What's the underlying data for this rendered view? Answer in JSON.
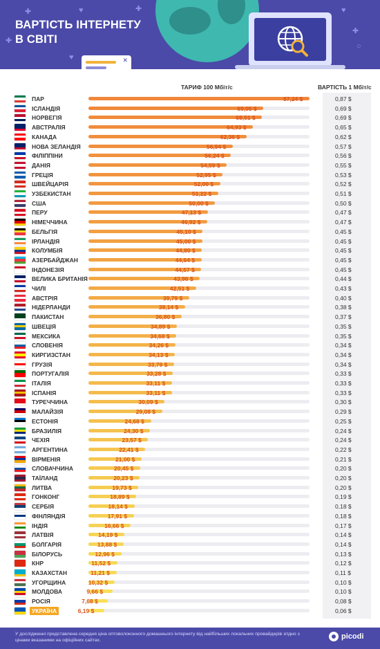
{
  "header": {
    "title_line1": "ВАРТІСТЬ ІНТЕРНЕТУ",
    "title_line2": "В СВІТІ"
  },
  "columns": {
    "tariff": "ТАРИФ 100 Мбіт/с",
    "cost": "ВАРТІСТЬ 1 Мбіт/с"
  },
  "footer": {
    "note": "У дослідженні представлена середня ціна оптоволоконного домашнього інтернету від найбільших локальних провайдерів згідно з цінами вказаними на офіційних сайтах.",
    "logo": "picodi"
  },
  "colors": {
    "header_bg": "#4b4aa8",
    "bar_top": "#f0873a",
    "bar_bottom": "#f7e25a",
    "value_text": "#d9541e",
    "highlight": "#f5a623"
  },
  "chart_data": {
    "type": "bar",
    "orientation": "horizontal",
    "xlim": [
      0,
      87.24
    ],
    "series": [
      {
        "name": "ТАРИФ 100 Мбіт/с",
        "values": [
          87.24,
          69.05,
          68.51,
          64.93,
          62.36,
          56.94,
          56.24,
          54.59,
          52.95,
          52.0,
          51.22,
          50.0,
          47.13,
          46.92,
          45.1,
          45.0,
          44.8,
          44.64,
          44.57,
          43.96,
          42.51,
          39.79,
          38.14,
          36.8,
          34.89,
          34.68,
          34.26,
          34.13,
          33.79,
          33.28,
          33.11,
          33.11,
          30.09,
          29.08,
          24.68,
          24.3,
          23.57,
          22.41,
          21.0,
          20.45,
          20.23,
          19.73,
          18.89,
          18.14,
          17.91,
          16.66,
          14.19,
          13.88,
          12.96,
          11.52,
          11.21,
          10.32,
          9.66,
          7.68,
          6.19
        ]
      },
      {
        "name": "ВАРТІСТЬ 1 Мбіт/с",
        "values": [
          0.87,
          0.69,
          0.69,
          0.65,
          0.62,
          0.57,
          0.56,
          0.55,
          0.53,
          0.52,
          0.51,
          0.5,
          0.47,
          0.47,
          0.45,
          0.45,
          0.45,
          0.45,
          0.45,
          0.44,
          0.43,
          0.4,
          0.38,
          0.37,
          0.35,
          0.35,
          0.34,
          0.34,
          0.34,
          0.33,
          0.33,
          0.33,
          0.3,
          0.29,
          0.25,
          0.24,
          0.24,
          0.22,
          0.21,
          0.2,
          0.2,
          0.2,
          0.19,
          0.18,
          0.18,
          0.17,
          0.14,
          0.14,
          0.13,
          0.12,
          0.11,
          0.1,
          0.1,
          0.08,
          0.06
        ]
      }
    ],
    "value_labels": [
      "87,24 $",
      "69,05 $",
      "68,51 $",
      "64,93 $",
      "62,36 $",
      "56,94 $",
      "56,24 $",
      "54,59 $",
      "52,95 $",
      "52,00 $",
      "51,22 $",
      "50,00 $",
      "47,13 $",
      "46,92 $",
      "45,10 $",
      "45,00 $",
      "44,80 $",
      "44,64 $",
      "44,57 $",
      "43,96 $",
      "42,51 $",
      "39,79 $",
      "38,14 $",
      "36,80 $",
      "34,89 $",
      "34,68 $",
      "34,26 $",
      "34,13 $",
      "33,79 $",
      "33,28 $",
      "33,11 $",
      "33,11 $",
      "30,09 $",
      "29,08 $",
      "24,68 $",
      "24,30 $",
      "23,57 $",
      "22,41 $",
      "21,00 $",
      "20,45 $",
      "20,23 $",
      "19,73 $",
      "18,89 $",
      "18,14 $",
      "17,91 $",
      "16,66 $",
      "14,19 $",
      "13,88 $",
      "12,96 $",
      "11,52 $",
      "11,21 $",
      "10,32 $",
      "9,66 $",
      "7,68 $",
      "6,19 $"
    ],
    "cost_labels": [
      "0,87 $",
      "0,69 $",
      "0,69 $",
      "0,65 $",
      "0,62 $",
      "0,57 $",
      "0,56 $",
      "0,55 $",
      "0,53 $",
      "0,52 $",
      "0,51 $",
      "0,50 $",
      "0,47 $",
      "0,47 $",
      "0,45 $",
      "0,45 $",
      "0,45 $",
      "0,45 $",
      "0,45 $",
      "0,44 $",
      "0,43 $",
      "0,40 $",
      "0,38 $",
      "0,37 $",
      "0,35 $",
      "0,35 $",
      "0,34 $",
      "0,34 $",
      "0,34 $",
      "0,33 $",
      "0,33 $",
      "0,33 $",
      "0,30 $",
      "0,29 $",
      "0,25 $",
      "0,24 $",
      "0,24 $",
      "0,22 $",
      "0,21 $",
      "0,20 $",
      "0,20 $",
      "0,20 $",
      "0,19 $",
      "0,18 $",
      "0,18 $",
      "0,17 $",
      "0,14 $",
      "0,14 $",
      "0,13 $",
      "0,12 $",
      "0,11 $",
      "0,10 $",
      "0,10 $",
      "0,08 $",
      "0,06 $"
    ],
    "categories": [
      "ПАР",
      "ІСЛАНДІЯ",
      "НОРВЕГІЯ",
      "АВСТРАЛІЯ",
      "КАНАДА",
      "НОВА ЗЕЛАНДІЯ",
      "ФІЛІППІНИ",
      "ДАНІЯ",
      "ГРЕЦІЯ",
      "ШВЕЙЦАРІЯ",
      "УЗБЕКИСТАН",
      "США",
      "ПЕРУ",
      "НІМЕЧЧИНА",
      "БЕЛЬГІЯ",
      "ІРЛАНДІЯ",
      "КОЛУМБІЯ",
      "АЗЕРБАЙДЖАН",
      "ІНДОНЕЗІЯ",
      "ВЕЛИКА БРИТАНІЯ",
      "ЧИЛІ",
      "АВСТРІЯ",
      "НІДЕРЛАНДИ",
      "ПАКИСТАН",
      "ШВЕЦІЯ",
      "МЕКСИКА",
      "СЛОВЕНІЯ",
      "КИРГИЗСТАН",
      "ГРУЗІЯ",
      "ПОРТУГАЛІЯ",
      "ІТАЛІЯ",
      "ІСПАНІЯ",
      "ТУРЕЧЧИНА",
      "МАЛАЙЗІЯ",
      "ЕСТОНІЯ",
      "БРАЗИЛІЯ",
      "ЧЕХІЯ",
      "АРГЕНТИНА",
      "ВІРМЕНІЯ",
      "СЛОВАЧЧИНА",
      "ТАЇЛАНД",
      "ЛИТВА",
      "ГОНКОНГ",
      "СЕРБІЯ",
      "ФІНЛЯНДІЯ",
      "ІНДІЯ",
      "ЛАТВІЯ",
      "БОЛГАРІЯ",
      "БІЛОРУСЬ",
      "КНР",
      "КАЗАХСТАН",
      "УГОРЩИНА",
      "МОЛДОВА",
      "РОСІЯ",
      "УКРАЇНА"
    ],
    "highlighted_category": "УКРАЇНА",
    "flags": [
      [
        "#007a4d",
        "#ffffff",
        "#de3831"
      ],
      [
        "#02529c",
        "#ffffff",
        "#dc1e35"
      ],
      [
        "#ba0c2f",
        "#ffffff",
        "#00205b"
      ],
      [
        "#012169",
        "#012169",
        "#e4002b"
      ],
      [
        "#ff0000",
        "#ffffff",
        "#ff0000"
      ],
      [
        "#012169",
        "#012169",
        "#c8102e"
      ],
      [
        "#0038a8",
        "#ffffff",
        "#ce1126"
      ],
      [
        "#c8102e",
        "#ffffff",
        "#c8102e"
      ],
      [
        "#0d5eaf",
        "#ffffff",
        "#0d5eaf"
      ],
      [
        "#d52b1e",
        "#ffffff",
        "#d52b1e"
      ],
      [
        "#1eb53a",
        "#ffffff",
        "#0099b5"
      ],
      [
        "#b22234",
        "#ffffff",
        "#3c3b6e"
      ],
      [
        "#d91023",
        "#ffffff",
        "#d91023"
      ],
      [
        "#000000",
        "#dd0000",
        "#ffce00"
      ],
      [
        "#000000",
        "#fdda24",
        "#ef3340"
      ],
      [
        "#169b62",
        "#ffffff",
        "#ff883e"
      ],
      [
        "#fcd116",
        "#003893",
        "#ce1126"
      ],
      [
        "#00b5e2",
        "#ef3340",
        "#509e2f"
      ],
      [
        "#ce1126",
        "#ffffff",
        "#ffffff"
      ],
      [
        "#012169",
        "#ffffff",
        "#c8102e"
      ],
      [
        "#0039a6",
        "#ffffff",
        "#d52b1e"
      ],
      [
        "#ed2939",
        "#ffffff",
        "#ed2939"
      ],
      [
        "#ae1c28",
        "#ffffff",
        "#21468b"
      ],
      [
        "#01411c",
        "#01411c",
        "#ffffff"
      ],
      [
        "#006aa7",
        "#fecc00",
        "#006aa7"
      ],
      [
        "#006847",
        "#ffffff",
        "#ce1126"
      ],
      [
        "#ffffff",
        "#005da4",
        "#ed1c24"
      ],
      [
        "#e8112d",
        "#ffef00",
        "#e8112d"
      ],
      [
        "#ffffff",
        "#ff0000",
        "#ffffff"
      ],
      [
        "#006600",
        "#ff0000",
        "#ff0000"
      ],
      [
        "#009246",
        "#ffffff",
        "#ce2b37"
      ],
      [
        "#aa151b",
        "#f1bf00",
        "#aa151b"
      ],
      [
        "#e30a17",
        "#e30a17",
        "#ffffff"
      ],
      [
        "#010066",
        "#cc0001",
        "#ffffff"
      ],
      [
        "#0072ce",
        "#000000",
        "#ffffff"
      ],
      [
        "#009c3b",
        "#ffdf00",
        "#002776"
      ],
      [
        "#11457e",
        "#ffffff",
        "#d7141a"
      ],
      [
        "#74acdf",
        "#ffffff",
        "#74acdf"
      ],
      [
        "#d90012",
        "#0033a0",
        "#f2a800"
      ],
      [
        "#ffffff",
        "#0b4ea2",
        "#ee1c25"
      ],
      [
        "#a51931",
        "#2d2a4a",
        "#a51931"
      ],
      [
        "#fdb913",
        "#006a44",
        "#c1272d"
      ],
      [
        "#de2910",
        "#ffffff",
        "#de2910"
      ],
      [
        "#c6363c",
        "#0c4076",
        "#ffffff"
      ],
      [
        "#ffffff",
        "#003580",
        "#ffffff"
      ],
      [
        "#ff9933",
        "#ffffff",
        "#138808"
      ],
      [
        "#9e3039",
        "#ffffff",
        "#9e3039"
      ],
      [
        "#ffffff",
        "#00966e",
        "#d62612"
      ],
      [
        "#c8313e",
        "#c8313e",
        "#4aa657"
      ],
      [
        "#de2910",
        "#de2910",
        "#de2910"
      ],
      [
        "#00afca",
        "#00afca",
        "#fec50c"
      ],
      [
        "#ce2939",
        "#ffffff",
        "#477050"
      ],
      [
        "#0046ae",
        "#ffd200",
        "#cc092f"
      ],
      [
        "#ffffff",
        "#0039a6",
        "#d52b1e"
      ],
      [
        "#0057b7",
        "#0057b7",
        "#ffd700"
      ]
    ]
  }
}
